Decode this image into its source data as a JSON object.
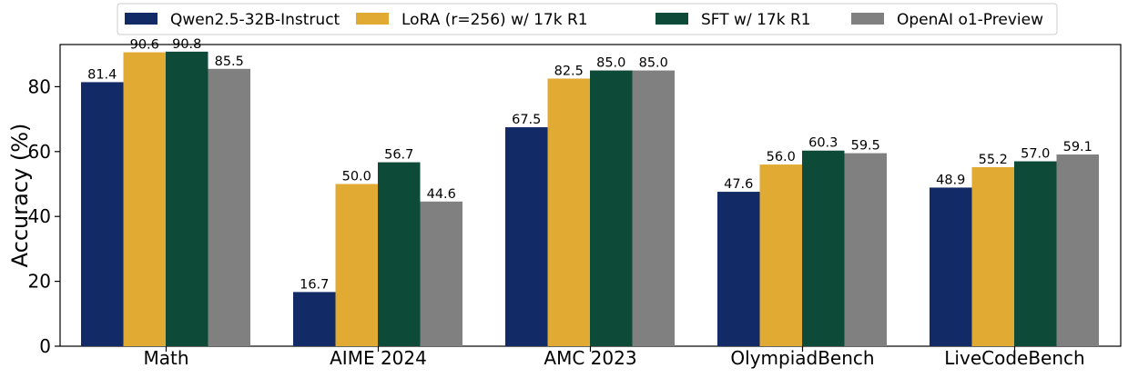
{
  "chart_data": {
    "type": "bar",
    "title": "",
    "xlabel": "",
    "ylabel": "Accuracy (%)",
    "ylim": [
      0,
      93
    ],
    "yticks": [
      0,
      20,
      40,
      60,
      80
    ],
    "grid": false,
    "legend_position": "top-center",
    "categories": [
      "Math",
      "AIME 2024",
      "AMC 2023",
      "OlympiadBench",
      "LiveCodeBench"
    ],
    "series": [
      {
        "name": "Qwen2.5-32B-Instruct",
        "color": "#122b66",
        "values": [
          81.4,
          16.7,
          67.5,
          47.6,
          48.9
        ]
      },
      {
        "name": "LoRA (r=256) w/ 17k R1",
        "color": "#e0aa33",
        "values": [
          90.6,
          50.0,
          82.5,
          56.0,
          55.2
        ]
      },
      {
        "name": "SFT w/ 17k R1",
        "color": "#0d4b38",
        "values": [
          90.8,
          56.7,
          85.0,
          60.3,
          57.0
        ]
      },
      {
        "name": "OpenAI o1-Preview",
        "color": "#808080",
        "values": [
          85.5,
          44.6,
          85.0,
          59.5,
          59.1
        ]
      }
    ]
  }
}
